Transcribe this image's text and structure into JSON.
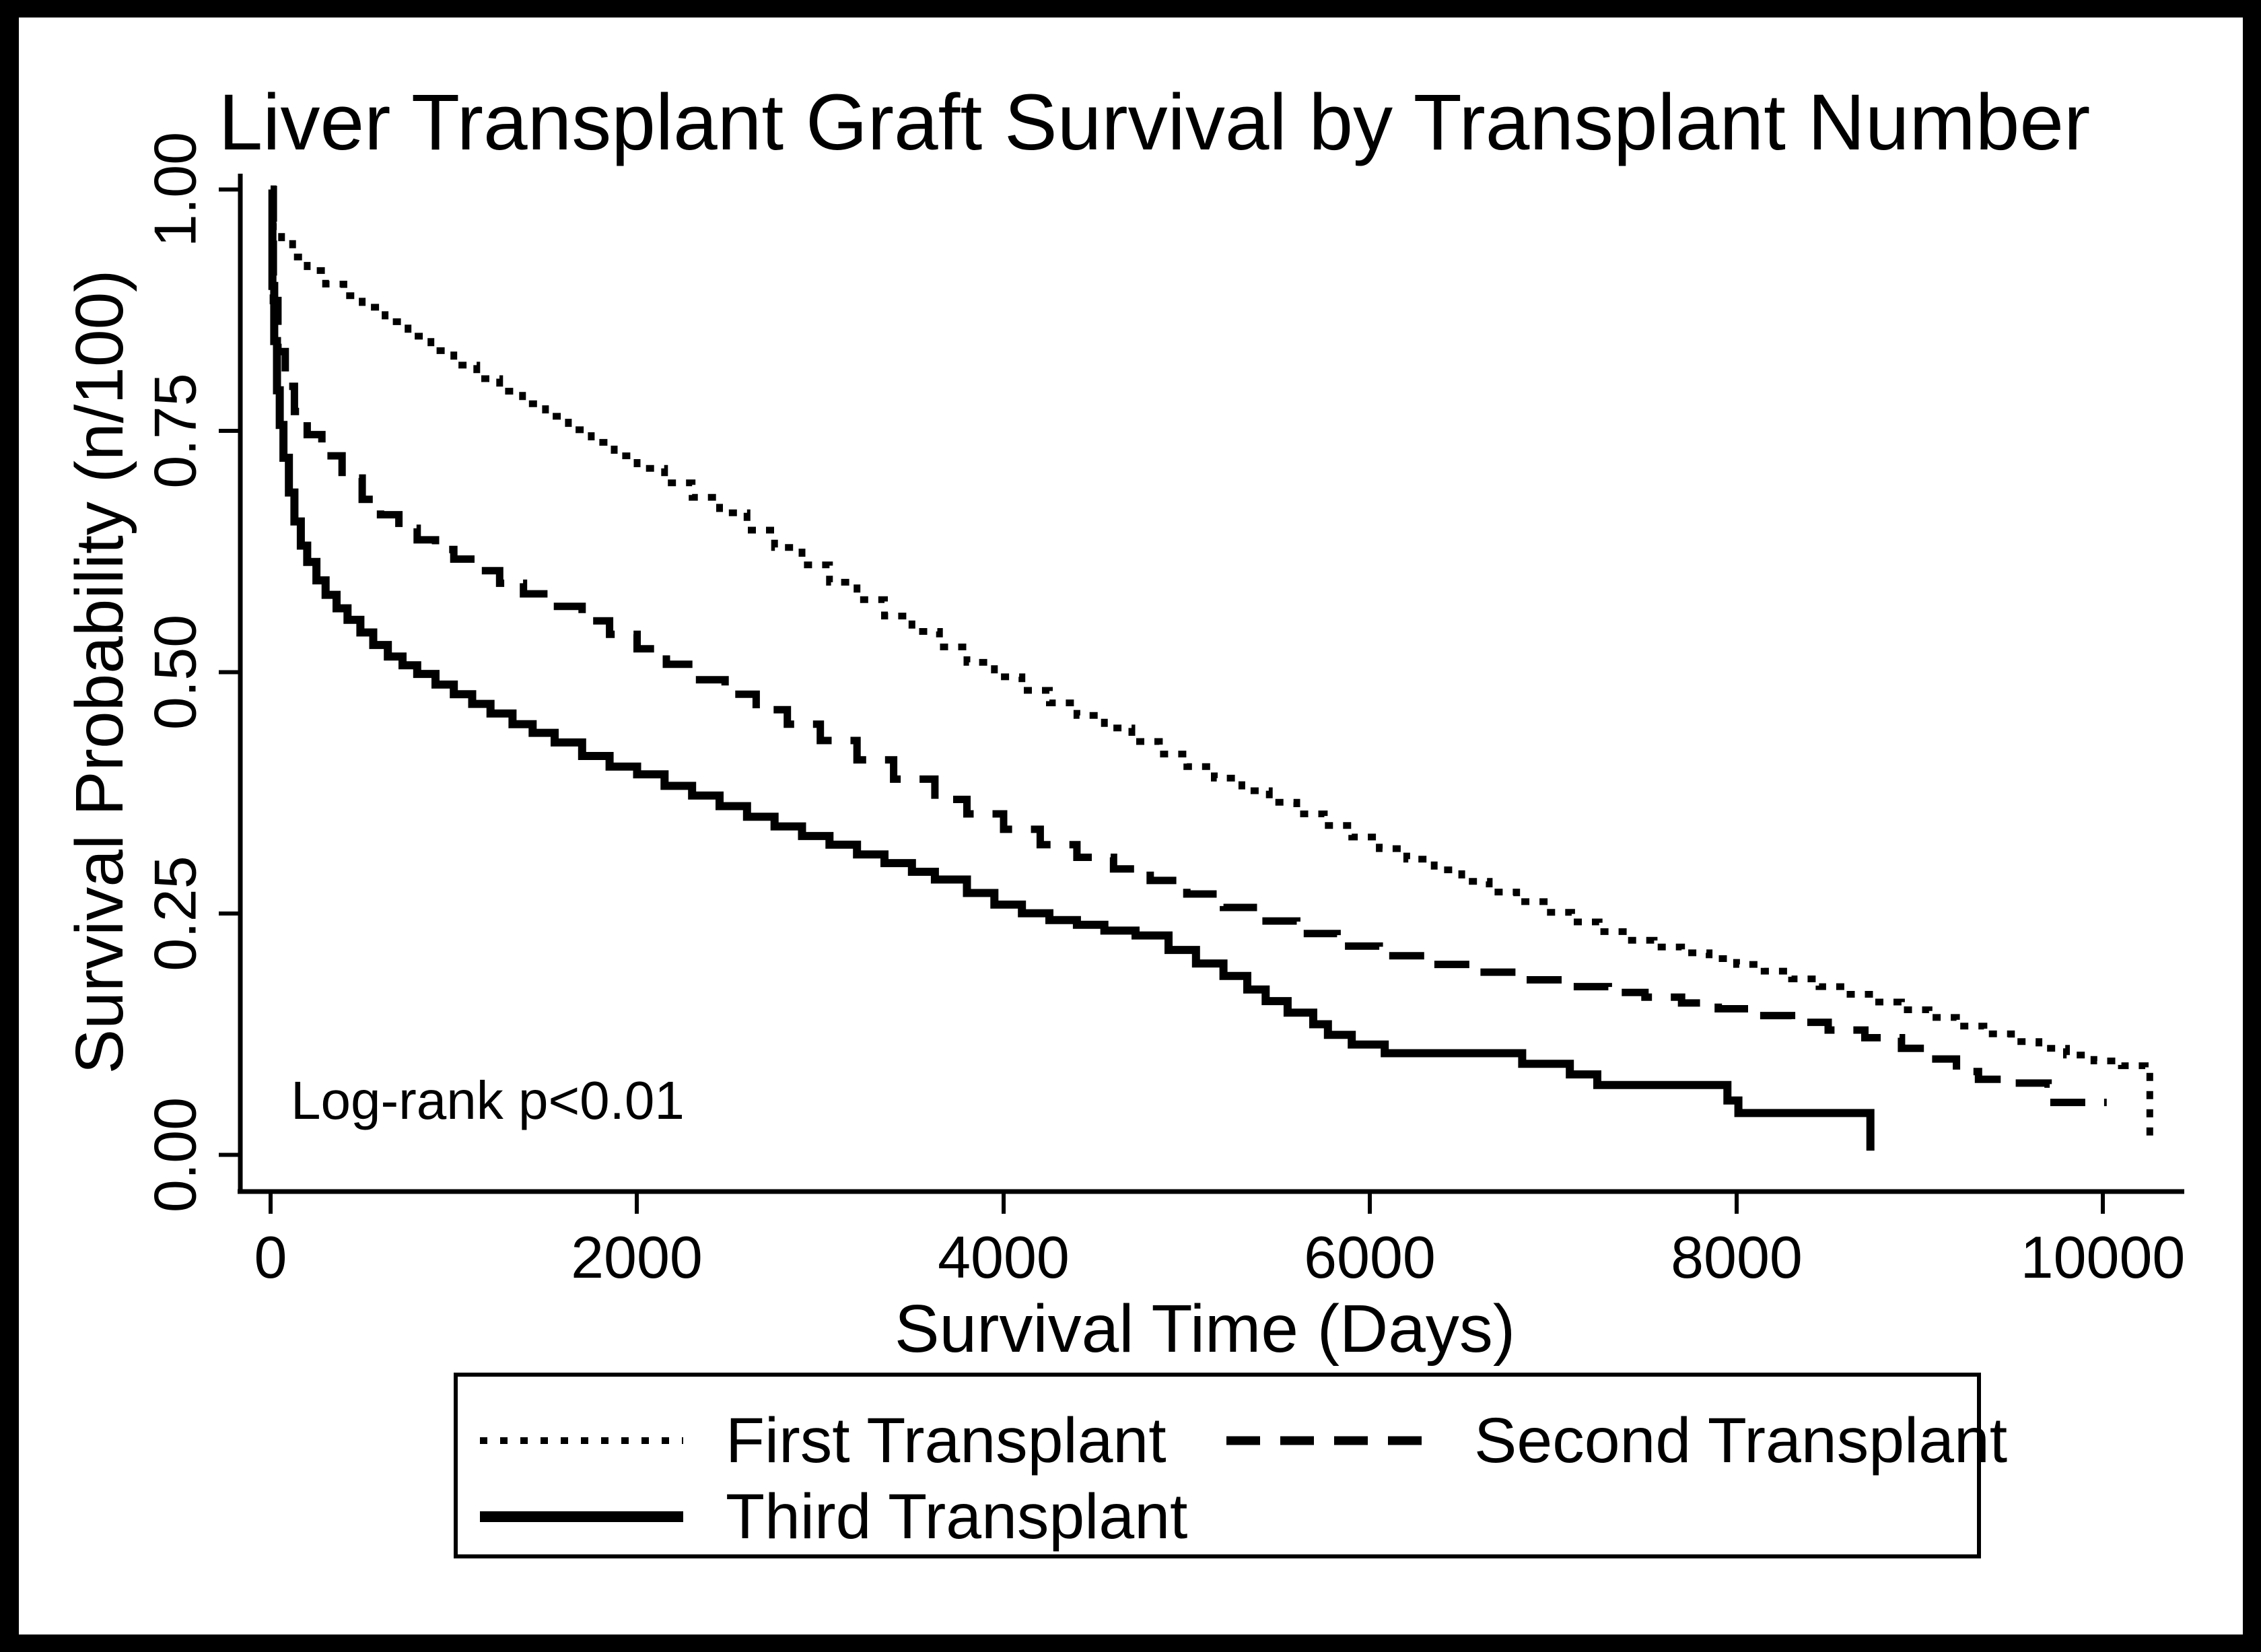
{
  "title": "Liver Transplant Graft Survival by Transplant Number",
  "annotation": "Log-rank p<0.01",
  "colors": {
    "ink": "#000000",
    "background": "#ffffff",
    "frame": "#000000"
  },
  "chart_data": {
    "type": "line",
    "subtype": "kaplan-meier-step-curves",
    "title": "Liver Transplant Graft Survival by Transplant Number",
    "xlabel": "Survival Time (Days)",
    "ylabel": "Survival Probability (n/100)",
    "xlim": [
      0,
      10600
    ],
    "ylim": [
      0,
      1
    ],
    "grid": false,
    "annotation": "Log-rank p<0.01",
    "x_ticks": [
      {
        "label": "0",
        "value": 0
      },
      {
        "label": "2000",
        "value": 2000
      },
      {
        "label": "4000",
        "value": 4000
      },
      {
        "label": "6000",
        "value": 6000
      },
      {
        "label": "8000",
        "value": 8000
      },
      {
        "label": "10000",
        "value": 10000
      }
    ],
    "y_ticks": [
      {
        "label": "1.00",
        "value": 1.0
      },
      {
        "label": "0.75",
        "value": 0.75
      },
      {
        "label": "0.50",
        "value": 0.5
      },
      {
        "label": "0.25",
        "value": 0.25
      },
      {
        "label": "0.00",
        "value": 0.0
      }
    ],
    "legend": {
      "position": "bottom",
      "border": true,
      "items": [
        {
          "label": "First Transplant",
          "line_style": "dotted"
        },
        {
          "label": "Second Transplant",
          "line_style": "dashed"
        },
        {
          "label": "Third Transplant",
          "line_style": "solid"
        }
      ]
    },
    "series": [
      {
        "name": "First Transplant",
        "line_style": "dotted",
        "points": [
          [
            0,
            1.0
          ],
          [
            15,
            0.958
          ],
          [
            60,
            0.944
          ],
          [
            120,
            0.93
          ],
          [
            200,
            0.916
          ],
          [
            300,
            0.902
          ],
          [
            400,
            0.89
          ],
          [
            500,
            0.878
          ],
          [
            625,
            0.863
          ],
          [
            750,
            0.848
          ],
          [
            875,
            0.833
          ],
          [
            1000,
            0.818
          ],
          [
            1125,
            0.804
          ],
          [
            1250,
            0.791
          ],
          [
            1375,
            0.778
          ],
          [
            1500,
            0.765
          ],
          [
            1625,
            0.751
          ],
          [
            1750,
            0.738
          ],
          [
            1875,
            0.724
          ],
          [
            2000,
            0.711
          ],
          [
            2150,
            0.696
          ],
          [
            2300,
            0.681
          ],
          [
            2450,
            0.665
          ],
          [
            2600,
            0.647
          ],
          [
            2750,
            0.629
          ],
          [
            2900,
            0.611
          ],
          [
            3050,
            0.593
          ],
          [
            3200,
            0.575
          ],
          [
            3350,
            0.558
          ],
          [
            3500,
            0.542
          ],
          [
            3650,
            0.526
          ],
          [
            3800,
            0.51
          ],
          [
            3950,
            0.495
          ],
          [
            4100,
            0.481
          ],
          [
            4250,
            0.468
          ],
          [
            4400,
            0.455
          ],
          [
            4550,
            0.442
          ],
          [
            4700,
            0.428
          ],
          [
            4850,
            0.415
          ],
          [
            5000,
            0.402
          ],
          [
            5150,
            0.39
          ],
          [
            5300,
            0.377
          ],
          [
            5450,
            0.365
          ],
          [
            5600,
            0.353
          ],
          [
            5750,
            0.341
          ],
          [
            5900,
            0.329
          ],
          [
            6050,
            0.317
          ],
          [
            6200,
            0.306
          ],
          [
            6350,
            0.295
          ],
          [
            6500,
            0.283
          ],
          [
            6650,
            0.272
          ],
          [
            6800,
            0.262
          ],
          [
            6950,
            0.251
          ],
          [
            7100,
            0.241
          ],
          [
            7250,
            0.231
          ],
          [
            7400,
            0.222
          ],
          [
            7550,
            0.215
          ],
          [
            7700,
            0.209
          ],
          [
            7850,
            0.203
          ],
          [
            8000,
            0.197
          ],
          [
            8150,
            0.19
          ],
          [
            8300,
            0.182
          ],
          [
            8450,
            0.174
          ],
          [
            8600,
            0.166
          ],
          [
            8750,
            0.158
          ],
          [
            8900,
            0.15
          ],
          [
            9050,
            0.142
          ],
          [
            9200,
            0.133
          ],
          [
            9350,
            0.125
          ],
          [
            9500,
            0.117
          ],
          [
            9650,
            0.11
          ],
          [
            9800,
            0.103
          ],
          [
            9950,
            0.097
          ],
          [
            10100,
            0.092
          ],
          [
            10230,
            0.088
          ],
          [
            10255,
            0.01
          ]
        ]
      },
      {
        "name": "Second Transplant",
        "line_style": "dashed",
        "points": [
          [
            0,
            1.0
          ],
          [
            15,
            0.885
          ],
          [
            40,
            0.832
          ],
          [
            80,
            0.796
          ],
          [
            130,
            0.77
          ],
          [
            200,
            0.746
          ],
          [
            280,
            0.724
          ],
          [
            390,
            0.701
          ],
          [
            500,
            0.679
          ],
          [
            600,
            0.663
          ],
          [
            700,
            0.649
          ],
          [
            800,
            0.637
          ],
          [
            900,
            0.627
          ],
          [
            1000,
            0.617
          ],
          [
            1120,
            0.605
          ],
          [
            1250,
            0.592
          ],
          [
            1380,
            0.581
          ],
          [
            1530,
            0.568
          ],
          [
            1700,
            0.553
          ],
          [
            1850,
            0.539
          ],
          [
            2000,
            0.524
          ],
          [
            2160,
            0.508
          ],
          [
            2320,
            0.492
          ],
          [
            2480,
            0.477
          ],
          [
            2650,
            0.461
          ],
          [
            2820,
            0.446
          ],
          [
            3000,
            0.429
          ],
          [
            3200,
            0.409
          ],
          [
            3400,
            0.389
          ],
          [
            3625,
            0.368
          ],
          [
            3800,
            0.353
          ],
          [
            4000,
            0.337
          ],
          [
            4200,
            0.321
          ],
          [
            4400,
            0.308
          ],
          [
            4600,
            0.296
          ],
          [
            4800,
            0.284
          ],
          [
            5000,
            0.27
          ],
          [
            5200,
            0.256
          ],
          [
            5400,
            0.242
          ],
          [
            5600,
            0.229
          ],
          [
            5820,
            0.216
          ],
          [
            6050,
            0.206
          ],
          [
            6300,
            0.197
          ],
          [
            6550,
            0.189
          ],
          [
            6800,
            0.181
          ],
          [
            7050,
            0.174
          ],
          [
            7300,
            0.168
          ],
          [
            7500,
            0.163
          ],
          [
            7700,
            0.157
          ],
          [
            7900,
            0.151
          ],
          [
            8100,
            0.144
          ],
          [
            8300,
            0.137
          ],
          [
            8500,
            0.129
          ],
          [
            8700,
            0.121
          ],
          [
            8900,
            0.11
          ],
          [
            9050,
            0.099
          ],
          [
            9200,
            0.086
          ],
          [
            9320,
            0.078
          ],
          [
            9450,
            0.074
          ],
          [
            9700,
            0.073
          ],
          [
            9710,
            0.054
          ],
          [
            10020,
            0.054
          ]
        ]
      },
      {
        "name": "Third Transplant",
        "line_style": "solid",
        "points": [
          [
            0,
            1.0
          ],
          [
            10,
            0.9
          ],
          [
            20,
            0.843
          ],
          [
            35,
            0.792
          ],
          [
            50,
            0.756
          ],
          [
            70,
            0.722
          ],
          [
            100,
            0.686
          ],
          [
            130,
            0.656
          ],
          [
            165,
            0.631
          ],
          [
            200,
            0.614
          ],
          [
            250,
            0.595
          ],
          [
            300,
            0.58
          ],
          [
            360,
            0.566
          ],
          [
            420,
            0.554
          ],
          [
            490,
            0.541
          ],
          [
            560,
            0.528
          ],
          [
            640,
            0.516
          ],
          [
            720,
            0.507
          ],
          [
            800,
            0.498
          ],
          [
            900,
            0.487
          ],
          [
            1000,
            0.477
          ],
          [
            1100,
            0.467
          ],
          [
            1200,
            0.457
          ],
          [
            1320,
            0.446
          ],
          [
            1430,
            0.437
          ],
          [
            1550,
            0.427
          ],
          [
            1700,
            0.413
          ],
          [
            1850,
            0.402
          ],
          [
            2000,
            0.394
          ],
          [
            2150,
            0.382
          ],
          [
            2300,
            0.372
          ],
          [
            2450,
            0.361
          ],
          [
            2600,
            0.35
          ],
          [
            2750,
            0.34
          ],
          [
            2900,
            0.33
          ],
          [
            3050,
            0.321
          ],
          [
            3200,
            0.311
          ],
          [
            3350,
            0.302
          ],
          [
            3500,
            0.293
          ],
          [
            3625,
            0.285
          ],
          [
            3800,
            0.271
          ],
          [
            3950,
            0.259
          ],
          [
            4100,
            0.25
          ],
          [
            4250,
            0.243
          ],
          [
            4400,
            0.238
          ],
          [
            4550,
            0.232
          ],
          [
            4720,
            0.227
          ],
          [
            4900,
            0.212
          ],
          [
            5050,
            0.198
          ],
          [
            5200,
            0.185
          ],
          [
            5330,
            0.171
          ],
          [
            5430,
            0.159
          ],
          [
            5550,
            0.147
          ],
          [
            5690,
            0.135
          ],
          [
            5770,
            0.124
          ],
          [
            5900,
            0.114
          ],
          [
            6080,
            0.105
          ],
          [
            6830,
            0.094
          ],
          [
            7090,
            0.083
          ],
          [
            7240,
            0.072
          ],
          [
            7950,
            0.056
          ],
          [
            8010,
            0.043
          ],
          [
            8710,
            0.043
          ],
          [
            8730,
            0.004
          ]
        ]
      }
    ]
  }
}
